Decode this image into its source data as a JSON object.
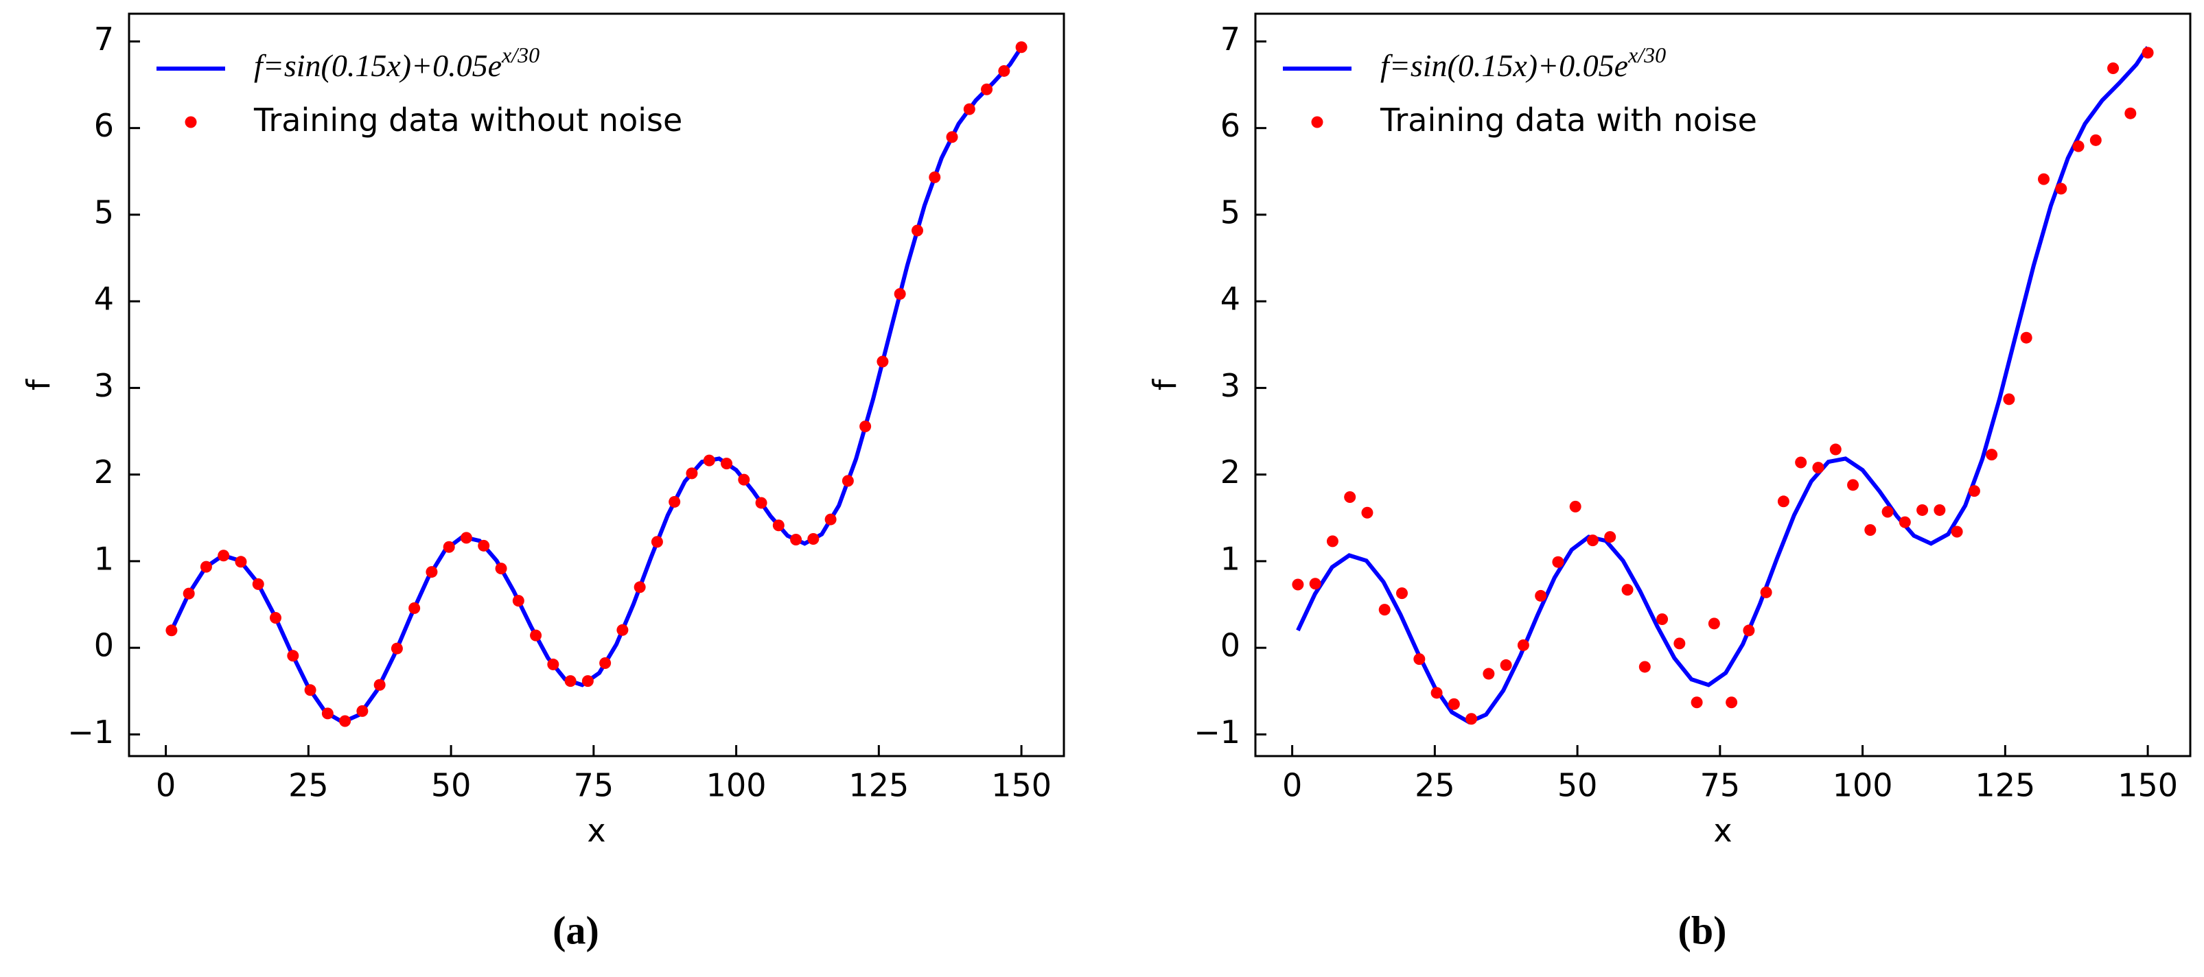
{
  "chart_data": [
    {
      "type": "line",
      "caption": "(a)",
      "xlabel": "x",
      "ylabel": "f",
      "xlim": [
        -6.45,
        157.45
      ],
      "ylim": [
        -1.25,
        7.32
      ],
      "xticks": [
        0,
        25,
        50,
        75,
        100,
        125,
        150
      ],
      "yticks": [
        {
          "value": -1,
          "label": "−1"
        },
        0,
        1,
        2,
        3,
        4,
        5,
        6,
        7
      ],
      "legend": "upper left",
      "series": [
        {
          "name": "f=sin(0.15x)+0.05e",
          "name_sup": "x/30",
          "type": "line",
          "color": "#0000ff",
          "x": [
            1,
            4,
            7,
            10,
            13,
            16,
            19,
            22,
            25,
            28,
            31,
            34,
            37,
            40,
            43,
            46,
            49,
            52,
            55,
            58,
            61,
            64,
            67,
            70,
            73,
            76,
            79,
            82,
            85,
            88,
            91,
            94,
            97,
            100,
            103,
            106,
            109,
            112,
            115,
            118,
            121,
            124,
            127,
            130,
            133,
            136,
            139,
            142,
            145,
            148,
            150
          ],
          "values": [
            0.201,
            0.622,
            0.931,
            1.067,
            1.006,
            0.761,
            0.382,
            -0.054,
            -0.457,
            -0.744,
            -0.858,
            -0.771,
            -0.494,
            -0.09,
            0.375,
            0.81,
            1.132,
            1.281,
            1.235,
            1.006,
            0.653,
            0.248,
            -0.118,
            -0.364,
            -0.429,
            -0.29,
            0.041,
            0.506,
            1.033,
            1.531,
            1.922,
            2.147,
            2.184,
            2.052,
            1.804,
            1.521,
            1.294,
            1.203,
            1.311,
            1.642,
            2.18,
            2.872,
            3.646,
            4.415,
            5.103,
            5.653,
            6.05,
            6.319,
            6.519,
            6.734,
            6.934
          ]
        },
        {
          "name": "Training data without noise",
          "type": "scatter",
          "color": "#ff0000",
          "x": [
            1,
            4.04,
            7.08,
            10.12,
            13.16,
            16.2,
            19.24,
            22.29,
            25.33,
            28.37,
            31.41,
            34.45,
            37.49,
            40.53,
            43.57,
            46.61,
            49.65,
            52.69,
            55.73,
            58.78,
            61.82,
            64.86,
            67.9,
            70.94,
            73.98,
            77.02,
            80.06,
            83.1,
            86.14,
            89.18,
            92.22,
            95.27,
            98.31,
            101.35,
            104.39,
            107.43,
            110.47,
            113.51,
            116.55,
            119.59,
            122.63,
            125.67,
            128.71,
            131.76,
            134.8,
            137.84,
            140.88,
            143.92,
            146.96,
            150
          ],
          "values": [
            0.201,
            0.626,
            0.935,
            1.065,
            0.993,
            0.735,
            0.346,
            -0.092,
            -0.488,
            -0.758,
            -0.846,
            -0.73,
            -0.428,
            -0.008,
            0.458,
            0.876,
            1.164,
            1.27,
            1.179,
            0.915,
            0.543,
            0.143,
            -0.192,
            -0.384,
            -0.384,
            -0.177,
            0.205,
            0.7,
            1.223,
            1.685,
            2.014,
            2.163,
            2.127,
            1.941,
            1.673,
            1.413,
            1.249,
            1.257,
            1.482,
            1.927,
            2.556,
            3.304,
            4.085,
            4.817,
            5.432,
            5.896,
            6.218,
            6.447,
            6.659,
            6.934
          ]
        }
      ]
    },
    {
      "type": "line",
      "caption": "(b)",
      "xlabel": "x",
      "ylabel": "f",
      "xlim": [
        -6.45,
        157.45
      ],
      "ylim": [
        -1.25,
        7.32
      ],
      "xticks": [
        0,
        25,
        50,
        75,
        100,
        125,
        150
      ],
      "yticks": [
        {
          "value": -1,
          "label": "−1"
        },
        0,
        1,
        2,
        3,
        4,
        5,
        6,
        7
      ],
      "legend": "upper left",
      "series": [
        {
          "name": "f=sin(0.15x)+0.05e",
          "name_sup": "x/30",
          "type": "line",
          "color": "#0000ff",
          "x": [
            1,
            4,
            7,
            10,
            13,
            16,
            19,
            22,
            25,
            28,
            31,
            34,
            37,
            40,
            43,
            46,
            49,
            52,
            55,
            58,
            61,
            64,
            67,
            70,
            73,
            76,
            79,
            82,
            85,
            88,
            91,
            94,
            97,
            100,
            103,
            106,
            109,
            112,
            115,
            118,
            121,
            124,
            127,
            130,
            133,
            136,
            139,
            142,
            145,
            148,
            150
          ],
          "values": [
            0.201,
            0.622,
            0.931,
            1.067,
            1.006,
            0.761,
            0.382,
            -0.054,
            -0.457,
            -0.744,
            -0.858,
            -0.771,
            -0.494,
            -0.09,
            0.375,
            0.81,
            1.132,
            1.281,
            1.235,
            1.006,
            0.653,
            0.248,
            -0.118,
            -0.364,
            -0.429,
            -0.29,
            0.041,
            0.506,
            1.033,
            1.531,
            1.922,
            2.147,
            2.184,
            2.052,
            1.804,
            1.521,
            1.294,
            1.203,
            1.311,
            1.642,
            2.18,
            2.872,
            3.646,
            4.415,
            5.103,
            5.653,
            6.05,
            6.319,
            6.519,
            6.734,
            6.934
          ]
        },
        {
          "name": "Training data with noise",
          "type": "scatter",
          "color": "#ff0000",
          "x": [
            1,
            4.04,
            7.08,
            10.12,
            13.16,
            16.2,
            19.24,
            22.29,
            25.33,
            28.37,
            31.41,
            34.45,
            37.49,
            40.53,
            43.57,
            46.61,
            49.65,
            52.69,
            55.73,
            58.78,
            61.82,
            64.86,
            67.9,
            70.94,
            73.98,
            77.02,
            80.06,
            83.1,
            86.14,
            89.18,
            92.22,
            95.27,
            98.31,
            101.35,
            104.39,
            107.43,
            110.47,
            113.51,
            116.55,
            119.59,
            122.63,
            125.67,
            128.71,
            131.76,
            134.8,
            137.84,
            140.88,
            143.92,
            146.96,
            150
          ],
          "values": [
            0.73,
            0.74,
            1.23,
            1.74,
            1.56,
            0.44,
            0.63,
            -0.13,
            -0.52,
            -0.65,
            -0.82,
            -0.3,
            -0.2,
            0.03,
            0.6,
            0.99,
            1.63,
            1.24,
            1.28,
            0.67,
            -0.22,
            0.33,
            0.05,
            -0.63,
            0.28,
            -0.63,
            0.2,
            0.64,
            1.69,
            2.14,
            2.08,
            2.29,
            1.88,
            1.36,
            1.57,
            1.45,
            1.59,
            1.59,
            1.34,
            1.81,
            2.23,
            2.87,
            3.58,
            5.41,
            5.3,
            5.79,
            5.86,
            6.69,
            6.17,
            6.87
          ]
        }
      ]
    }
  ]
}
